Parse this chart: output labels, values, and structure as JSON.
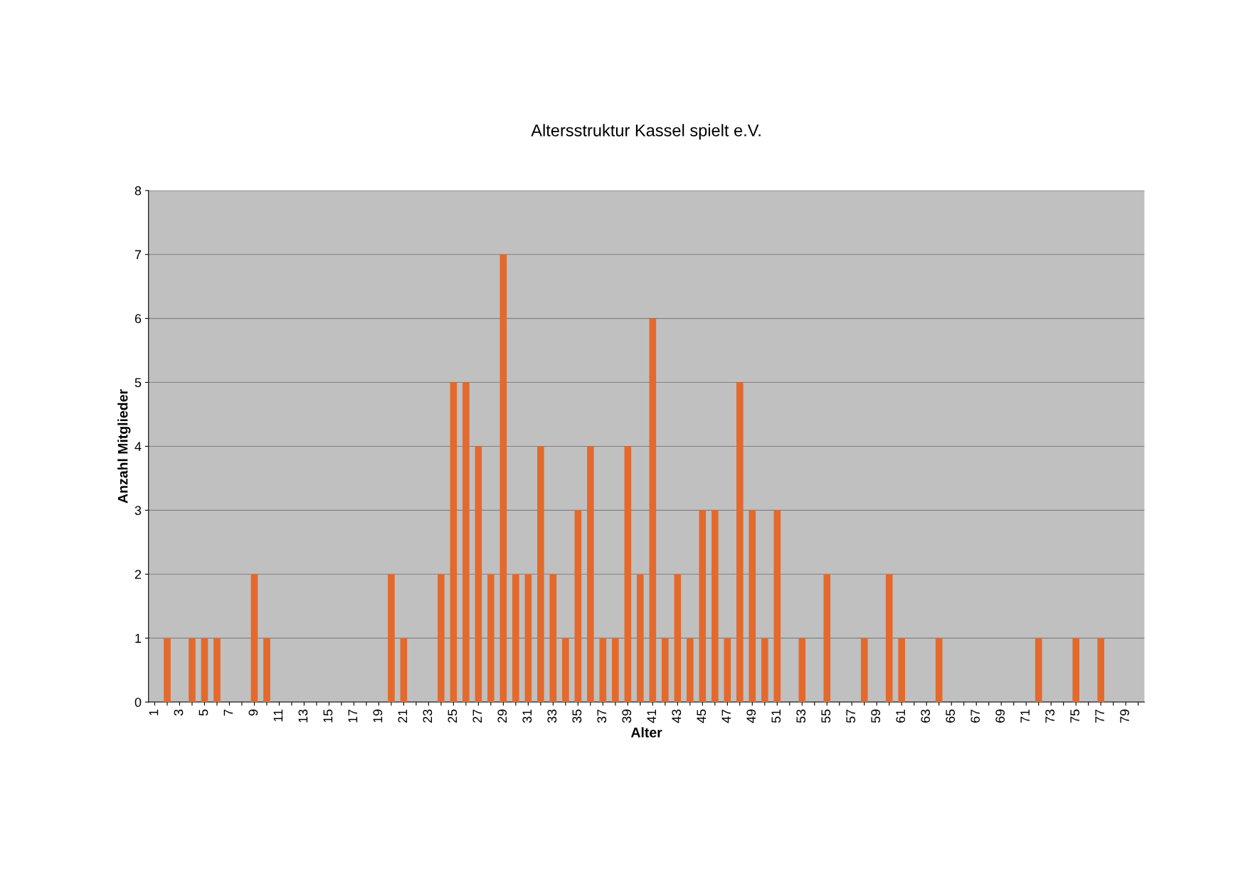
{
  "chart_data": {
    "type": "bar",
    "title": "Altersstruktur Kassel spielt e.V.",
    "xlabel": "Alter",
    "ylabel": "Anzahl Mitglieder",
    "categories": [
      "1",
      null,
      "3",
      null,
      "5",
      null,
      "7",
      null,
      "9",
      null,
      "11",
      null,
      "13",
      null,
      "15",
      null,
      "17",
      null,
      "19",
      null,
      "21",
      null,
      "23",
      null,
      "25",
      null,
      "27",
      null,
      "29",
      null,
      "31",
      null,
      "33",
      null,
      "35",
      null,
      "37",
      null,
      "39",
      null,
      "41",
      null,
      "43",
      null,
      "45",
      null,
      "47",
      null,
      "49",
      null,
      "51",
      null,
      "53",
      null,
      "55",
      null,
      "57",
      null,
      "59",
      null,
      "61",
      null,
      "63",
      null,
      "65",
      null,
      "67",
      null,
      "69",
      null,
      "71",
      null,
      "73",
      null,
      "75",
      null,
      "77",
      null,
      "79",
      null
    ],
    "values": [
      0,
      1,
      0,
      1,
      1,
      1,
      0,
      0,
      2,
      1,
      0,
      0,
      0,
      0,
      0,
      0,
      0,
      0,
      0,
      2,
      1,
      0,
      0,
      2,
      5,
      5,
      4,
      2,
      7,
      2,
      2,
      4,
      2,
      1,
      3,
      4,
      1,
      1,
      4,
      2,
      6,
      1,
      2,
      1,
      3,
      3,
      1,
      5,
      3,
      1,
      3,
      0,
      1,
      0,
      2,
      0,
      0,
      1,
      0,
      2,
      1,
      0,
      0,
      1,
      0,
      0,
      0,
      0,
      0,
      0,
      0,
      1,
      0,
      0,
      1,
      0,
      1,
      0,
      0,
      0
    ],
    "color": "#e4692c",
    "ylim": [
      0,
      8
    ],
    "yticks": [
      0,
      1,
      2,
      3,
      4,
      5,
      6,
      7,
      8
    ],
    "grid": "y",
    "legend": false
  }
}
